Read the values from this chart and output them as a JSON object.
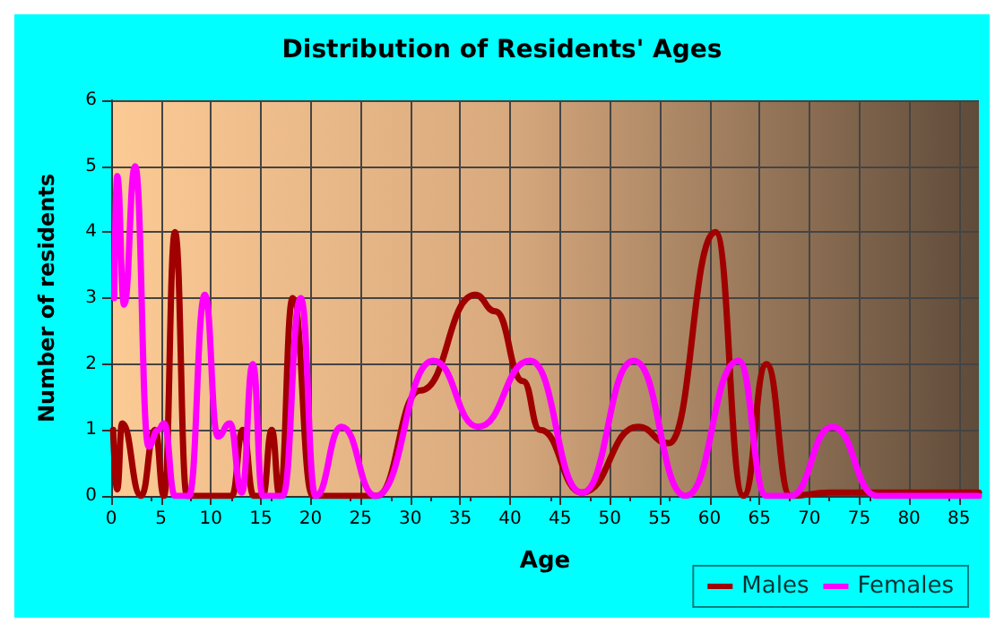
{
  "chart_data": {
    "type": "line",
    "title": "Distribution of Residents' Ages",
    "xlabel": "Age",
    "ylabel": "Number of residents",
    "xlim": [
      0,
      87
    ],
    "xticks": [
      0,
      5,
      10,
      15,
      20,
      25,
      30,
      35,
      40,
      45,
      50,
      55,
      60,
      65,
      70,
      75,
      80,
      85
    ],
    "ylim": [
      0,
      6
    ],
    "yticks": [
      0,
      1,
      2,
      3,
      4,
      5,
      6
    ],
    "grid": true,
    "legend": "bottom right",
    "marker": "none",
    "line_style": "solid",
    "series": [
      {
        "name": "Males",
        "color": "#a00000",
        "x": [
          0.2,
          0.6,
          1.1,
          3,
          4.4,
          5.3,
          6.4,
          7.6,
          12.1,
          13.2,
          14.3,
          15.2,
          16.1,
          16.9,
          18.2,
          20.2,
          26.6,
          31,
          36.5,
          38.5,
          41.3,
          43,
          47.2,
          52.8,
          55.9,
          60.6,
          63.4,
          65.7,
          68.1,
          72,
          87
        ],
        "values": [
          1,
          0.1,
          1.1,
          0,
          1,
          0,
          4,
          0,
          0,
          1,
          0,
          0,
          1,
          0,
          3,
          0,
          0,
          1.6,
          3.05,
          2.8,
          1.74,
          1,
          0.05,
          1.05,
          0.8,
          4,
          0,
          2,
          0,
          0.05,
          0.05
        ]
      },
      {
        "name": "Females",
        "color": "#ff00ff",
        "x": [
          0.3,
          0.6,
          1.3,
          2.4,
          3.75,
          4.7,
          5.3,
          6.4,
          7.8,
          9.4,
          10.7,
          11.9,
          13.1,
          14.2,
          15.2,
          17.2,
          19,
          20.5,
          23.1,
          26.5,
          32.3,
          36.8,
          42,
          47.2,
          52.4,
          57.6,
          62.9,
          65.7,
          68.1,
          72.3,
          76.8,
          87
        ],
        "values": [
          3,
          4.85,
          2.9,
          5,
          0.75,
          1,
          1.1,
          0,
          0,
          3.05,
          0.9,
          1.1,
          0.05,
          2,
          0,
          0,
          3,
          0,
          1.05,
          0,
          2.05,
          1.05,
          2.05,
          0.05,
          2.05,
          0,
          2.05,
          0,
          0,
          1.05,
          0,
          0
        ]
      }
    ]
  }
}
